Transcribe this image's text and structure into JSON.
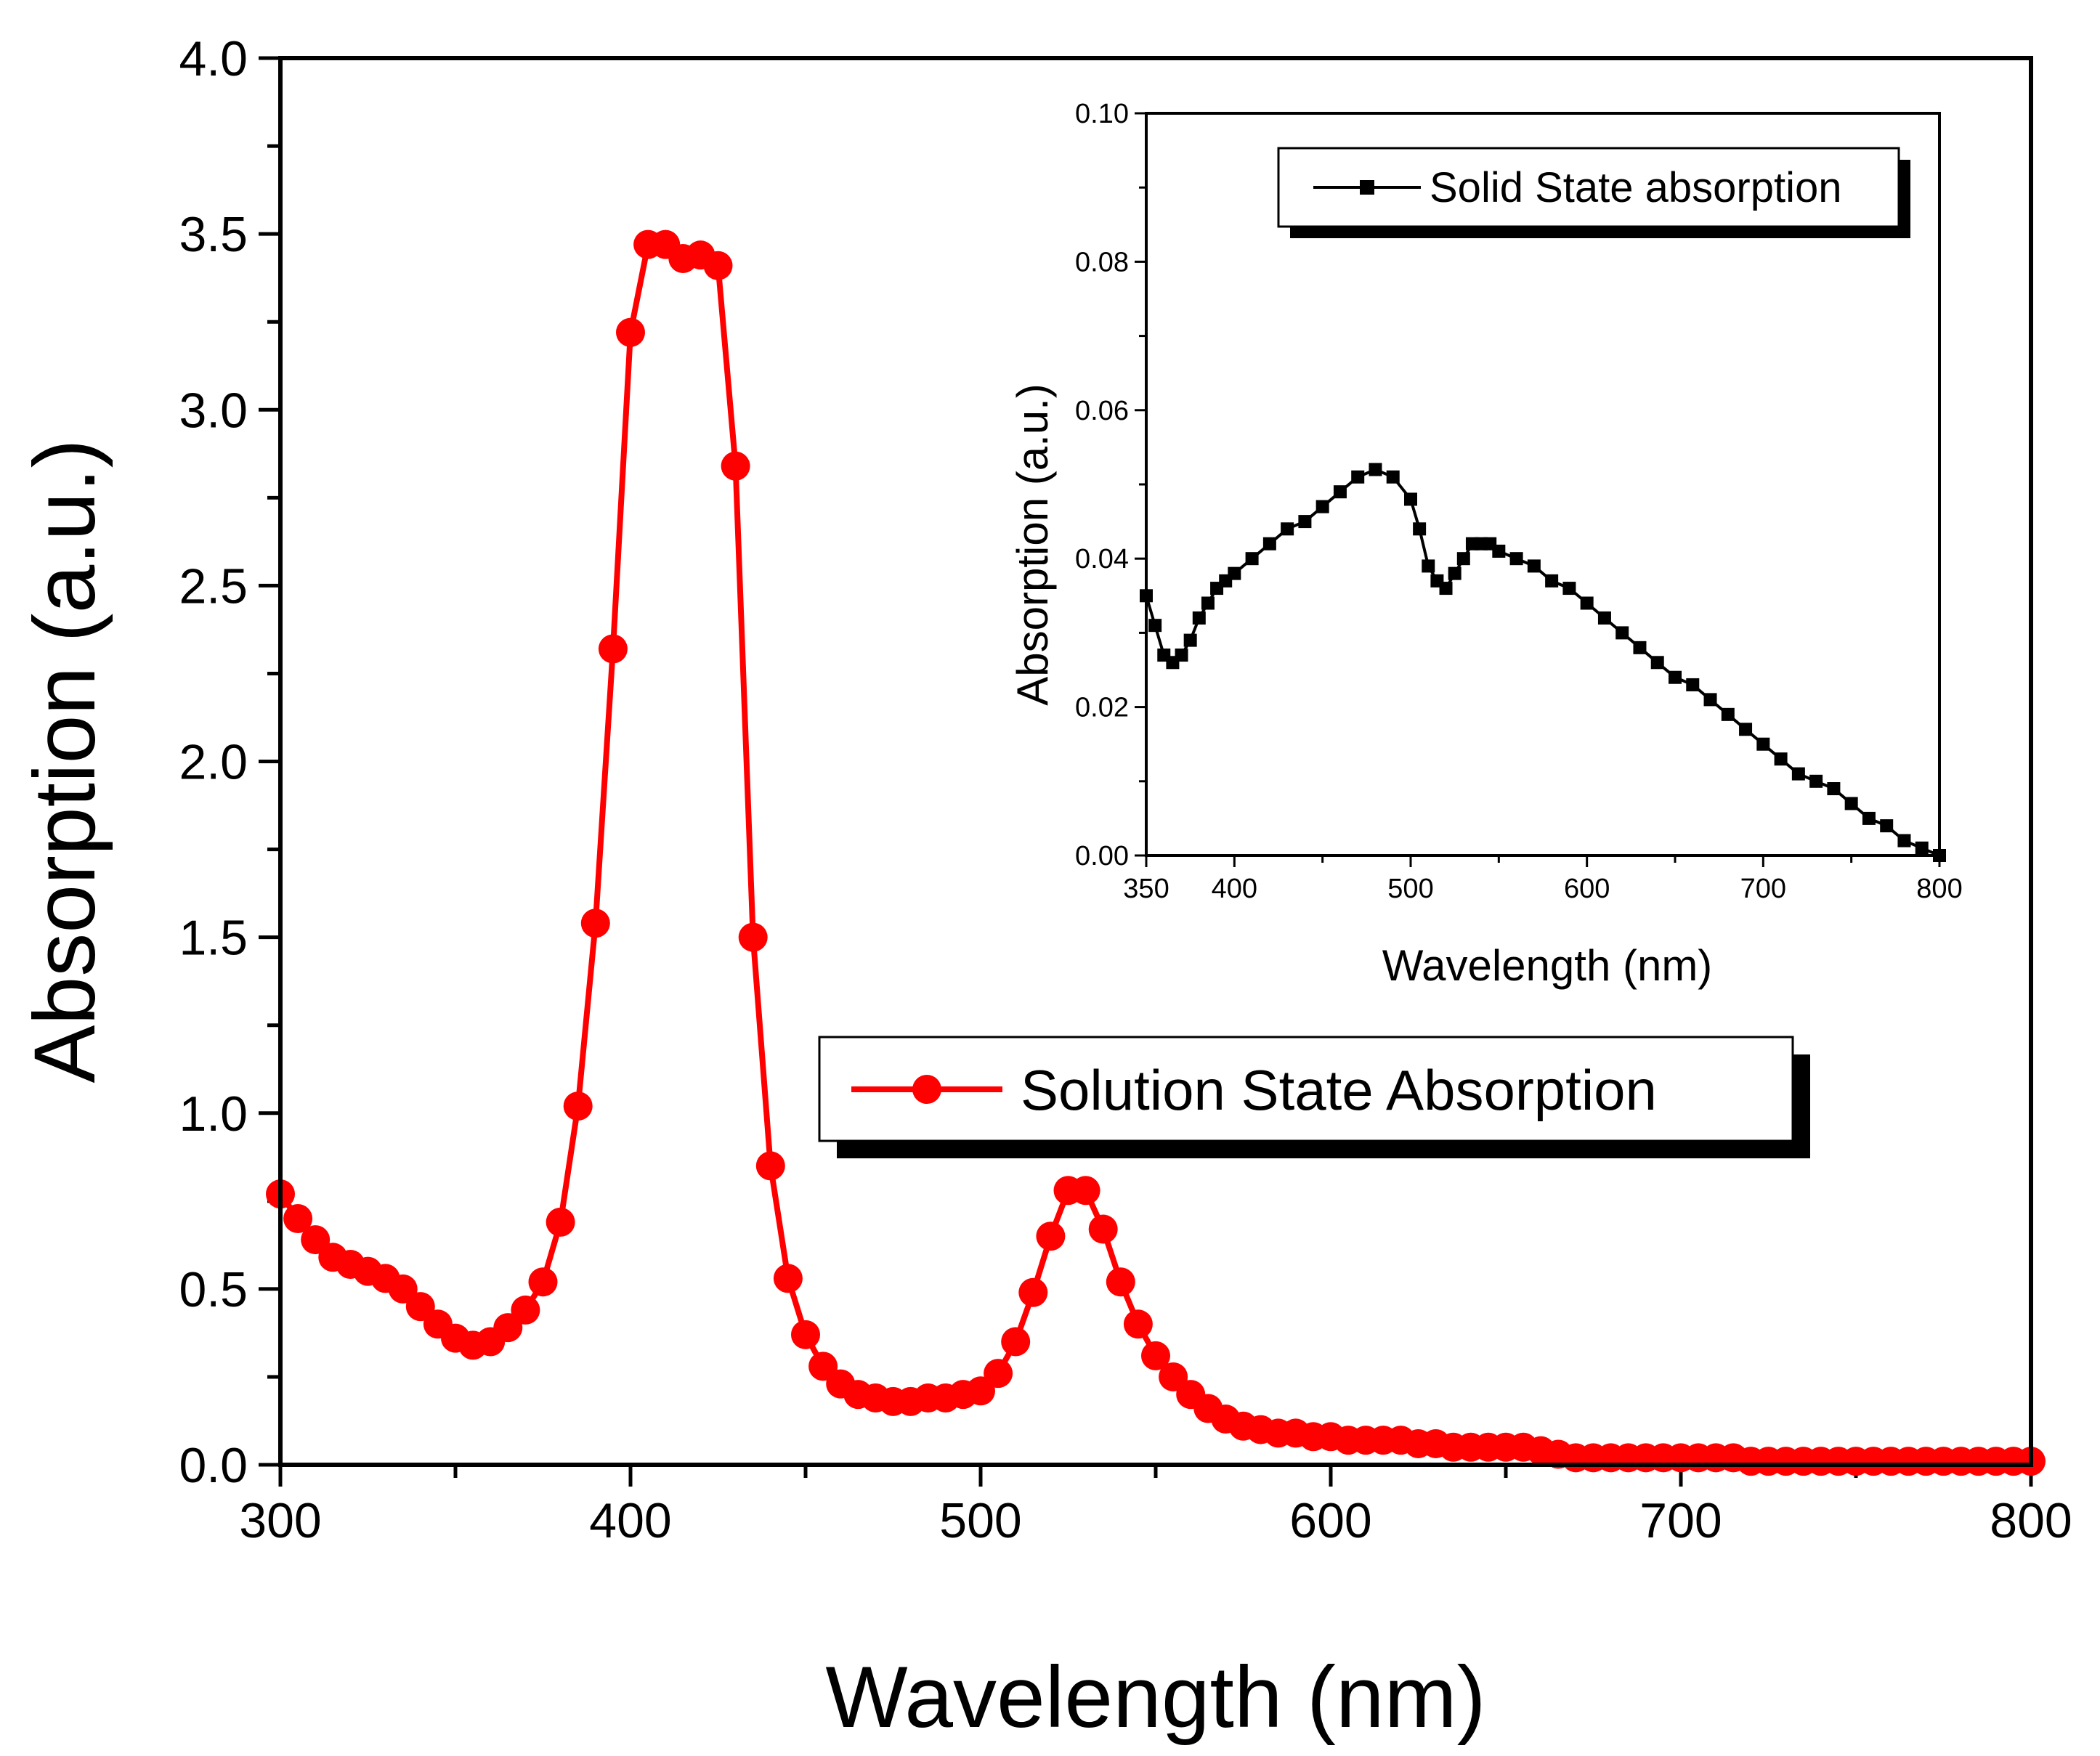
{
  "chart_data": [
    {
      "type": "line",
      "title": "",
      "xlabel": "Wavelength (nm)",
      "ylabel": "Absorption (a.u.)",
      "xlim": [
        300,
        800
      ],
      "ylim": [
        0.0,
        4.0
      ],
      "xticks": [
        300,
        400,
        500,
        600,
        700,
        800
      ],
      "xtick_labels": [
        "300",
        "400",
        "500",
        "600",
        "700",
        "800"
      ],
      "yticks": [
        0.0,
        0.5,
        1.0,
        1.5,
        2.0,
        2.5,
        3.0,
        3.5,
        4.0
      ],
      "ytick_labels": [
        "0.0",
        "0.5",
        "1.0",
        "1.5",
        "2.0",
        "2.5",
        "3.0",
        "3.5",
        "4.0"
      ],
      "legend": "center-right",
      "series": [
        {
          "name": "Solution State Absorption",
          "color": "#ff0000",
          "marker": "circle",
          "x": [
            300,
            305,
            310,
            315,
            320,
            325,
            330,
            335,
            340,
            345,
            350,
            355,
            360,
            365,
            370,
            375,
            380,
            385,
            390,
            395,
            400,
            405,
            410,
            415,
            420,
            425,
            430,
            435,
            440,
            445,
            450,
            455,
            460,
            465,
            470,
            475,
            480,
            485,
            490,
            495,
            500,
            505,
            510,
            515,
            520,
            525,
            530,
            535,
            540,
            545,
            550,
            555,
            560,
            565,
            570,
            575,
            580,
            585,
            590,
            595,
            600,
            605,
            610,
            615,
            620,
            625,
            630,
            635,
            640,
            645,
            650,
            655,
            660,
            665,
            670,
            675,
            680,
            685,
            690,
            695,
            700,
            705,
            710,
            715,
            720,
            725,
            730,
            735,
            740,
            745,
            750,
            755,
            760,
            765,
            770,
            775,
            780,
            785,
            790,
            795,
            800
          ],
          "y": [
            0.77,
            0.7,
            0.64,
            0.59,
            0.57,
            0.55,
            0.53,
            0.5,
            0.45,
            0.4,
            0.36,
            0.34,
            0.35,
            0.39,
            0.44,
            0.52,
            0.69,
            1.02,
            1.54,
            2.32,
            3.22,
            3.47,
            3.47,
            3.43,
            3.44,
            3.41,
            2.84,
            1.5,
            0.85,
            0.53,
            0.37,
            0.28,
            0.23,
            0.2,
            0.19,
            0.18,
            0.18,
            0.19,
            0.19,
            0.2,
            0.21,
            0.26,
            0.35,
            0.49,
            0.65,
            0.78,
            0.78,
            0.67,
            0.52,
            0.4,
            0.31,
            0.25,
            0.2,
            0.16,
            0.13,
            0.11,
            0.1,
            0.09,
            0.09,
            0.08,
            0.08,
            0.07,
            0.07,
            0.07,
            0.07,
            0.06,
            0.06,
            0.05,
            0.05,
            0.05,
            0.05,
            0.05,
            0.04,
            0.03,
            0.02,
            0.02,
            0.02,
            0.02,
            0.02,
            0.02,
            0.02,
            0.02,
            0.02,
            0.02,
            0.01,
            0.01,
            0.01,
            0.01,
            0.01,
            0.01,
            0.01,
            0.01,
            0.01,
            0.01,
            0.01,
            0.01,
            0.01,
            0.01,
            0.01,
            0.01,
            0.01
          ]
        }
      ]
    },
    {
      "type": "line",
      "title": "",
      "xlabel": "Wavelength (nm)",
      "ylabel": "Absorption (a.u.)",
      "xlim": [
        350,
        800
      ],
      "ylim": [
        0.0,
        0.1
      ],
      "xticks": [
        350,
        400,
        500,
        600,
        700,
        800
      ],
      "xtick_labels": [
        "350",
        "400",
        "500",
        "600",
        "700",
        "800"
      ],
      "yticks": [
        0.0,
        0.02,
        0.04,
        0.06,
        0.08,
        0.1
      ],
      "ytick_labels": [
        "0.00",
        "0.02",
        "0.04",
        "0.06",
        "0.08",
        "0.10"
      ],
      "legend": "top",
      "series": [
        {
          "name": "Solid State absorption",
          "color": "#000000",
          "marker": "square",
          "x": [
            350,
            355,
            360,
            365,
            370,
            375,
            380,
            385,
            390,
            395,
            400,
            410,
            420,
            430,
            440,
            450,
            460,
            470,
            480,
            490,
            500,
            505,
            510,
            515,
            520,
            525,
            530,
            535,
            540,
            545,
            550,
            560,
            570,
            580,
            590,
            600,
            610,
            620,
            630,
            640,
            650,
            660,
            670,
            680,
            690,
            700,
            710,
            720,
            730,
            740,
            750,
            760,
            770,
            780,
            790,
            800
          ],
          "y": [
            0.035,
            0.031,
            0.027,
            0.026,
            0.027,
            0.029,
            0.032,
            0.034,
            0.036,
            0.037,
            0.038,
            0.04,
            0.042,
            0.044,
            0.045,
            0.047,
            0.049,
            0.051,
            0.052,
            0.051,
            0.048,
            0.044,
            0.039,
            0.037,
            0.036,
            0.038,
            0.04,
            0.042,
            0.042,
            0.042,
            0.041,
            0.04,
            0.039,
            0.037,
            0.036,
            0.034,
            0.032,
            0.03,
            0.028,
            0.026,
            0.024,
            0.023,
            0.021,
            0.019,
            0.017,
            0.015,
            0.013,
            0.011,
            0.01,
            0.009,
            0.007,
            0.005,
            0.004,
            0.002,
            0.001,
            0.0
          ]
        }
      ]
    }
  ]
}
